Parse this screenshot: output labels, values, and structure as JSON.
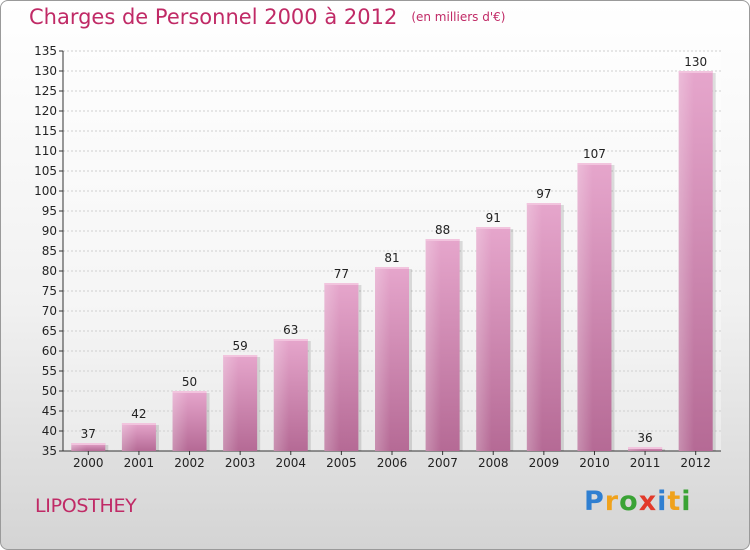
{
  "chart_data": {
    "type": "bar",
    "title": "Charges de Personnel 2000 à 2012",
    "subtitle": "(en milliers d'€)",
    "categories": [
      "2000",
      "2001",
      "2002",
      "2003",
      "2004",
      "2005",
      "2006",
      "2007",
      "2008",
      "2009",
      "2010",
      "2011",
      "2012"
    ],
    "values": [
      37,
      42,
      50,
      59,
      63,
      77,
      81,
      88,
      91,
      97,
      107,
      36,
      130
    ],
    "ylim": [
      35,
      135
    ],
    "yticks": [
      35,
      40,
      45,
      50,
      55,
      60,
      65,
      70,
      75,
      80,
      85,
      90,
      95,
      100,
      105,
      110,
      115,
      120,
      125,
      130,
      135
    ],
    "grid": true,
    "legend": "none",
    "bar_color": "#d98fbb",
    "title_color": "#c02a66"
  },
  "footer": {
    "commune": "LIPOSTHEY",
    "brand_letters": [
      {
        "ch": "P",
        "color": "#2f7fd1"
      },
      {
        "ch": "r",
        "color": "#f0a21b"
      },
      {
        "ch": "o",
        "color": "#3aa335"
      },
      {
        "ch": "x",
        "color": "#e23a2a"
      },
      {
        "ch": "i",
        "color": "#2f7fd1"
      },
      {
        "ch": "t",
        "color": "#f0a21b"
      },
      {
        "ch": "i",
        "color": "#3aa335"
      }
    ]
  }
}
